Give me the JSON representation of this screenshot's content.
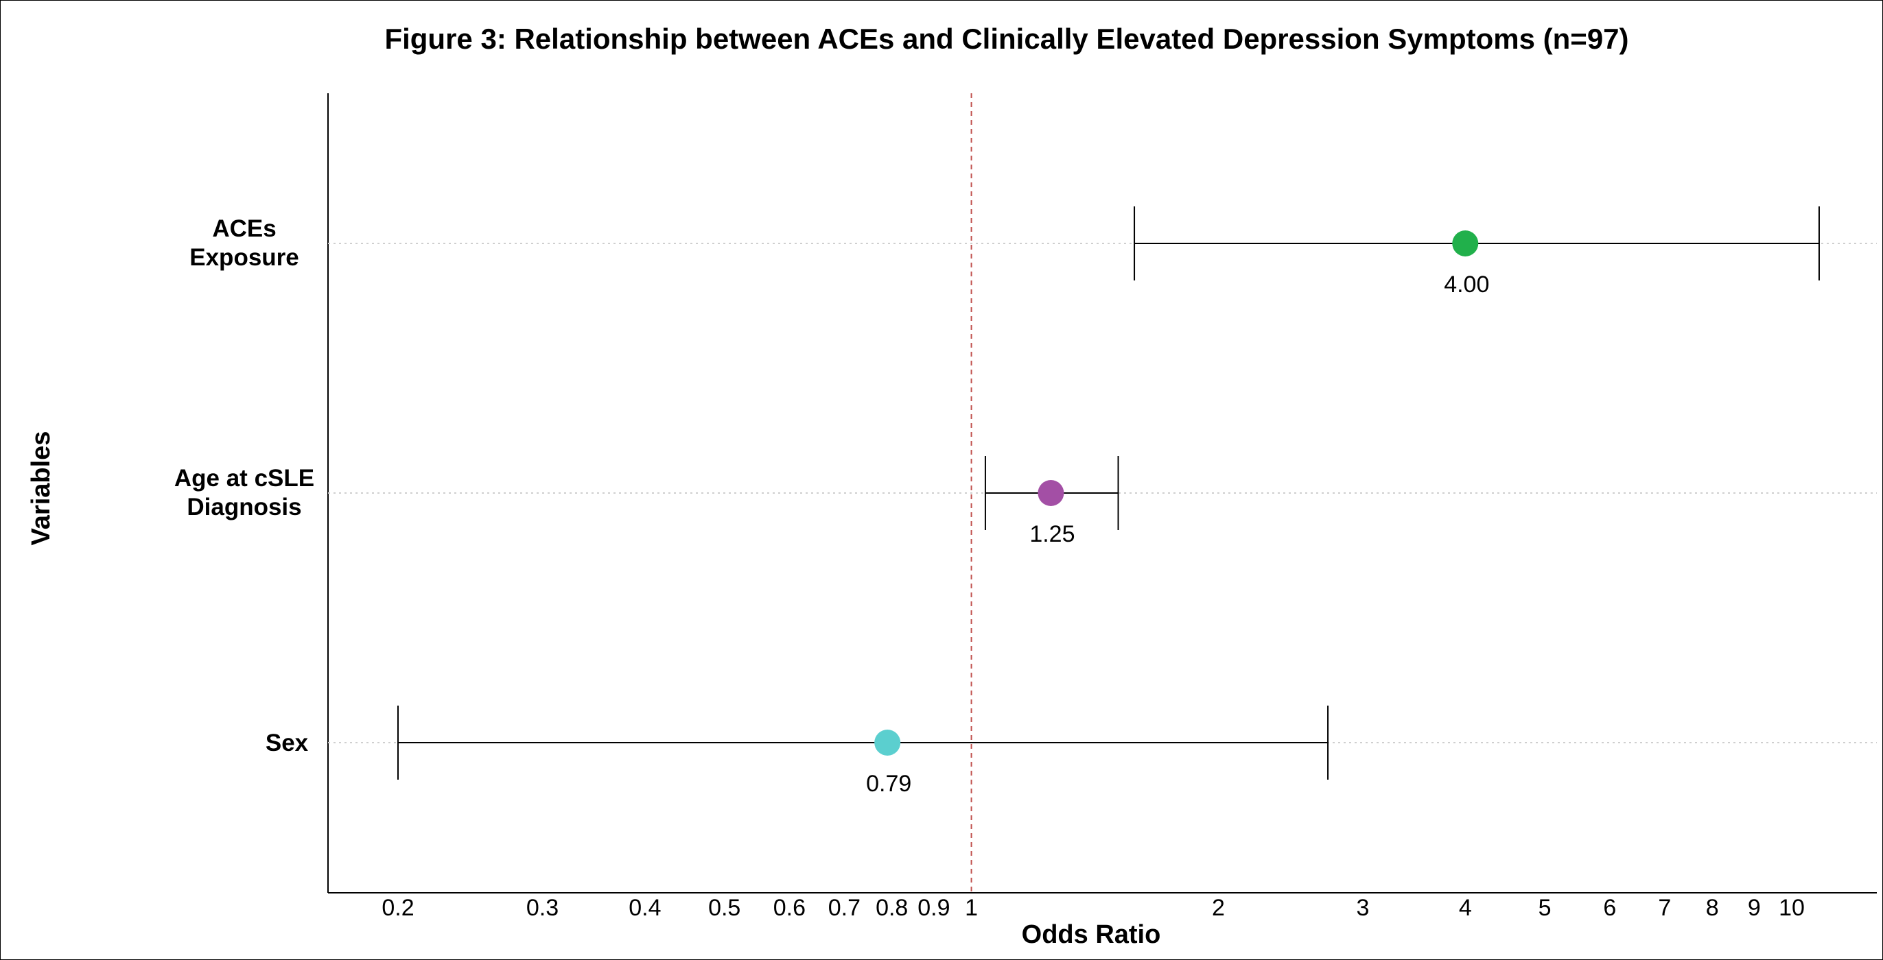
{
  "chart_data": {
    "type": "forest",
    "title": "Figure 3: Relationship between ACEs and Clinically Elevated Depression Symptoms (n=97)",
    "xlabel": "Odds Ratio",
    "ylabel": "Variables",
    "x_scale": "log",
    "xlim": [
      0.17,
      12.5
    ],
    "xticks": [
      {
        "value": 0.2,
        "label": "0.2"
      },
      {
        "value": 0.3,
        "label": "0.3"
      },
      {
        "value": 0.4,
        "label": "0.4"
      },
      {
        "value": 0.5,
        "label": "0.5"
      },
      {
        "value": 0.6,
        "label": "0.6"
      },
      {
        "value": 0.7,
        "label": "0.7"
      },
      {
        "value": 0.8,
        "label": "0.8"
      },
      {
        "value": 0.9,
        "label": "0.9"
      },
      {
        "value": 1,
        "label": "1"
      },
      {
        "value": 2,
        "label": "2"
      },
      {
        "value": 3,
        "label": "3"
      },
      {
        "value": 4,
        "label": "4"
      },
      {
        "value": 5,
        "label": "5"
      },
      {
        "value": 6,
        "label": "6"
      },
      {
        "value": 7,
        "label": "7"
      },
      {
        "value": 8,
        "label": "8"
      },
      {
        "value": 9,
        "label": "9"
      },
      {
        "value": 10,
        "label": "10"
      }
    ],
    "reference_line": 1,
    "reference_color": "#c0504d",
    "gridlines": "horizontal-dotted",
    "rows": [
      {
        "label_lines": [
          "ACEs",
          "Exposure"
        ],
        "or": 4.0,
        "lower": 1.58,
        "upper": 10.8,
        "value_label": "4.00",
        "color": "#21b04b"
      },
      {
        "label_lines": [
          "Age at cSLE",
          "Diagnosis"
        ],
        "or": 1.25,
        "lower": 1.04,
        "upper": 1.51,
        "value_label": "1.25",
        "color": "#a34fa5"
      },
      {
        "label_lines": [
          "Sex"
        ],
        "or": 0.79,
        "lower": 0.2,
        "upper": 2.72,
        "value_label": "0.79",
        "color": "#5bcfcf"
      }
    ]
  }
}
